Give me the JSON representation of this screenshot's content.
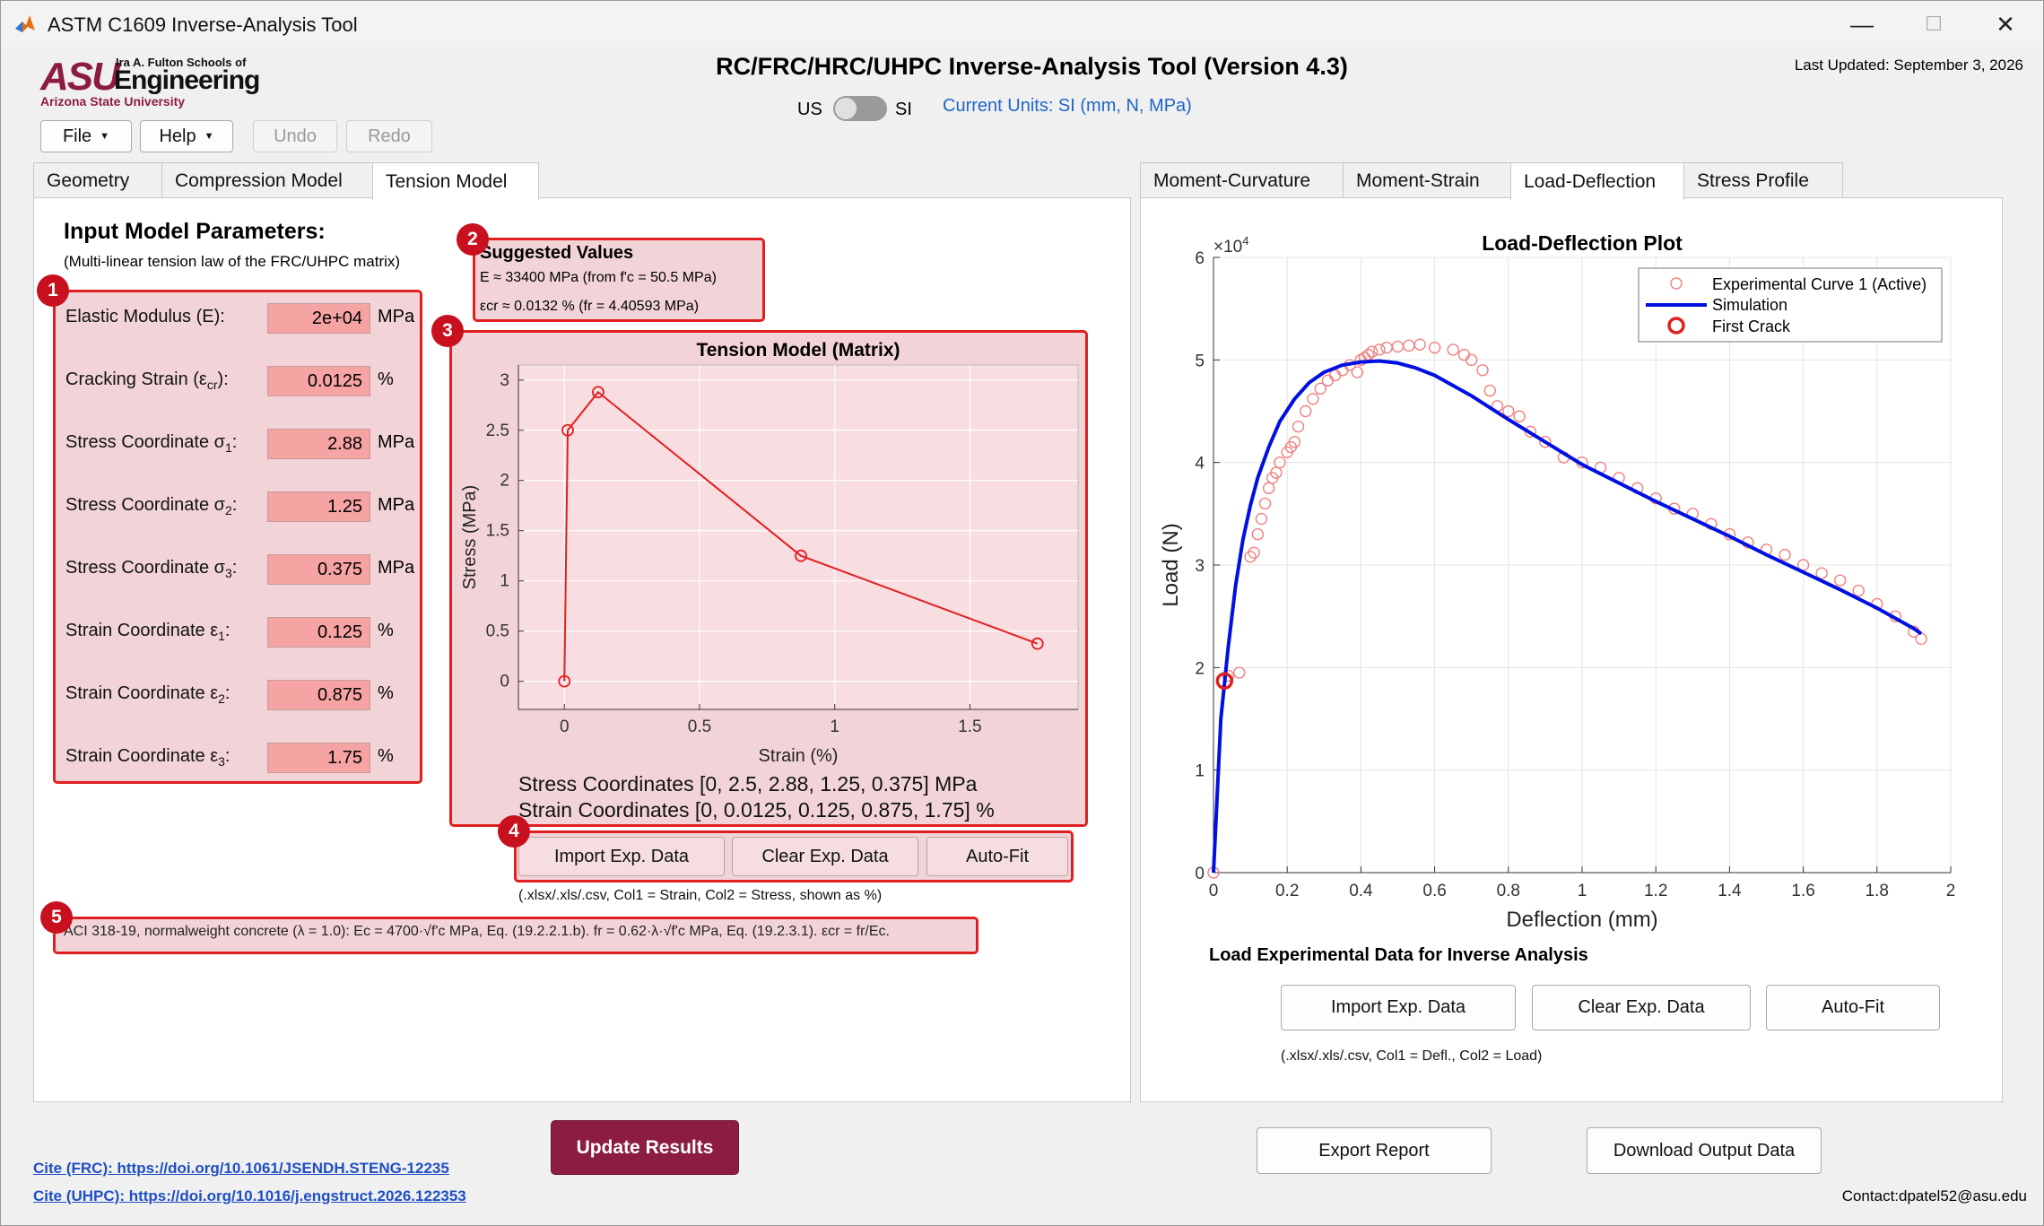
{
  "window": {
    "title": "ASTM C1609 Inverse-Analysis Tool",
    "minimize": "—",
    "maximize": "☐",
    "close": "✕"
  },
  "logo": {
    "asu": "ASU",
    "school": "Ira A. Fulton Schools of",
    "engineering": "Engineering",
    "university": "Arizona State University"
  },
  "menu": {
    "file": "File",
    "help": "Help",
    "undo": "Undo",
    "redo": "Redo"
  },
  "header": {
    "title": "RC/FRC/HRC/UHPC Inverse-Analysis Tool (Version 4.3)",
    "last_updated": "Last Updated: September 3, 2026",
    "unit_us": "US",
    "unit_si": "SI",
    "current_units": "Current Units: SI (mm, N, MPa)"
  },
  "left_tabs": [
    "Geometry",
    "Compression Model",
    "Tension Model"
  ],
  "right_tabs": [
    "Moment-Curvature",
    "Moment-Strain",
    "Load-Deflection",
    "Stress Profile"
  ],
  "input": {
    "heading": "Input Model Parameters:",
    "subheading": "(Multi-linear tension law of the FRC/UHPC matrix)",
    "params": [
      {
        "label": "Elastic Modulus (E):",
        "value": "2e+04",
        "unit": "MPa"
      },
      {
        "label": "Cracking Strain (ε",
        "sub": "cr",
        "tail": "):",
        "value": "0.0125",
        "unit": "%"
      },
      {
        "label": "Stress Coordinate σ",
        "sub": "1",
        "tail": ":",
        "value": "2.88",
        "unit": "MPa"
      },
      {
        "label": "Stress Coordinate σ",
        "sub": "2",
        "tail": ":",
        "value": "1.25",
        "unit": "MPa"
      },
      {
        "label": "Stress Coordinate σ",
        "sub": "3",
        "tail": ":",
        "value": "0.375",
        "unit": "MPa"
      },
      {
        "label": "Strain Coordinate ε",
        "sub": "1",
        "tail": ":",
        "value": "0.125",
        "unit": "%"
      },
      {
        "label": "Strain Coordinate ε",
        "sub": "2",
        "tail": ":",
        "value": "0.875",
        "unit": "%"
      },
      {
        "label": "Strain Coordinate ε",
        "sub": "3",
        "tail": ":",
        "value": "1.75",
        "unit": "%"
      }
    ]
  },
  "badges": [
    "1",
    "2",
    "3",
    "4",
    "5"
  ],
  "suggested": {
    "title": "Suggested Values",
    "line1": "E ≈ 33400 MPa  (from f'c = 50.5 MPa)",
    "line2": "εcr ≈ 0.0132 %  (fr = 4.40593 MPa)"
  },
  "tension_chart": {
    "stress_coords": "Stress Coordinates [0, 2.5, 2.88, 1.25, 0.375] MPa",
    "strain_coords": "Strain Coordinates [0, 0.0125, 0.125, 0.875, 1.75] %"
  },
  "left_buttons": {
    "import": "Import Exp. Data",
    "clear": "Clear Exp. Data",
    "autofit": "Auto-Fit",
    "note": "(.xlsx/.xls/.csv, Col1 = Strain, Col2 = Stress, shown as %)"
  },
  "aci_note": "ACI 318-19, normalweight concrete (λ = 1.0): Ec = 4700·√f'c MPa, Eq. (19.2.2.1.b). fr = 0.62·λ·√f'c MPa, Eq. (19.2.3.1). εcr = fr/Ec.",
  "right_panel": {
    "load_label": "Load Experimental Data for Inverse Analysis",
    "import": "Import Exp. Data",
    "clear": "Clear Exp. Data",
    "autofit": "Auto-Fit",
    "note": "(.xlsx/.xls/.csv, Col1 = Defl., Col2 = Load)"
  },
  "bottom": {
    "update": "Update Results",
    "export": "Export Report",
    "download": "Download Output Data",
    "cite_frc": "Cite (FRC): https://doi.org/10.1061/JSENDH.STENG-12235",
    "cite_uhpc": "Cite (UHPC): https://doi.org/10.1016/j.engstruct.2026.122353",
    "contact": "Contact:dpatel52@asu.edu"
  },
  "chart_data": [
    {
      "type": "line",
      "title": "Tension Model (Matrix)",
      "xlabel": "Strain (%)",
      "ylabel": "Stress (MPa)",
      "xlim": [
        -0.17,
        1.9
      ],
      "ylim": [
        -0.28,
        3.15
      ],
      "xticks": [
        0,
        0.5,
        1,
        1.5
      ],
      "yticks": [
        0,
        0.5,
        1,
        1.5,
        2,
        2.5,
        3
      ],
      "grid": true,
      "color": "#e02020",
      "x": [
        0,
        0.0125,
        0.125,
        0.875,
        1.75
      ],
      "y": [
        0,
        2.5,
        2.88,
        1.25,
        0.375
      ]
    },
    {
      "type": "line",
      "title": "Load-Deflection Plot",
      "xlabel": "Deflection (mm)",
      "ylabel": "Load (N)",
      "y_exponent": "×10",
      "y_exponent_power": "4",
      "xlim": [
        0,
        2
      ],
      "ylim": [
        0,
        6
      ],
      "xticks": [
        0,
        0.2,
        0.4,
        0.6,
        0.8,
        1,
        1.2,
        1.4,
        1.6,
        1.8,
        2
      ],
      "yticks": [
        0,
        1,
        2,
        3,
        4,
        5,
        6
      ],
      "grid": true,
      "legend_position": "top-right",
      "legend": [
        "Experimental Curve 1 (Active)",
        "Simulation",
        "First Crack"
      ],
      "series": [
        {
          "name": "Experimental Curve 1 (Active)",
          "color": "#f08080",
          "marker": "circle",
          "x": [
            0.0,
            0.04,
            0.07,
            0.1,
            0.11,
            0.12,
            0.13,
            0.14,
            0.15,
            0.16,
            0.17,
            0.18,
            0.2,
            0.21,
            0.22,
            0.23,
            0.25,
            0.27,
            0.29,
            0.31,
            0.33,
            0.35,
            0.37,
            0.39,
            0.4,
            0.41,
            0.42,
            0.43,
            0.45,
            0.47,
            0.5,
            0.53,
            0.56,
            0.6,
            0.65,
            0.68,
            0.7,
            0.73,
            0.75,
            0.77,
            0.8,
            0.83,
            0.86,
            0.9,
            0.95,
            1.0,
            1.05,
            1.1,
            1.15,
            1.2,
            1.25,
            1.3,
            1.35,
            1.4,
            1.45,
            1.5,
            1.55,
            1.6,
            1.65,
            1.7,
            1.75,
            1.8,
            1.85,
            1.9,
            1.92
          ],
          "y": [
            0.0,
            1.92,
            1.95,
            3.08,
            3.12,
            3.3,
            3.45,
            3.6,
            3.75,
            3.85,
            3.9,
            4.0,
            4.1,
            4.15,
            4.2,
            4.35,
            4.5,
            4.62,
            4.72,
            4.8,
            4.85,
            4.9,
            4.95,
            4.88,
            5.0,
            5.02,
            5.05,
            5.08,
            5.1,
            5.12,
            5.13,
            5.14,
            5.15,
            5.12,
            5.1,
            5.05,
            5.0,
            4.9,
            4.7,
            4.55,
            4.5,
            4.45,
            4.3,
            4.2,
            4.05,
            4.0,
            3.95,
            3.85,
            3.75,
            3.65,
            3.55,
            3.5,
            3.4,
            3.3,
            3.22,
            3.15,
            3.1,
            3.0,
            2.92,
            2.85,
            2.75,
            2.62,
            2.5,
            2.35,
            2.28
          ]
        },
        {
          "name": "Simulation",
          "color": "#0010e0",
          "marker": "none",
          "x": [
            0,
            0.02,
            0.04,
            0.06,
            0.08,
            0.1,
            0.12,
            0.15,
            0.18,
            0.22,
            0.26,
            0.3,
            0.35,
            0.4,
            0.45,
            0.5,
            0.55,
            0.6,
            0.7,
            0.8,
            0.9,
            1.0,
            1.1,
            1.2,
            1.3,
            1.4,
            1.5,
            1.6,
            1.7,
            1.8,
            1.9,
            1.92
          ],
          "y": [
            0,
            1.5,
            2.2,
            2.8,
            3.25,
            3.58,
            3.85,
            4.15,
            4.4,
            4.62,
            4.78,
            4.88,
            4.95,
            4.98,
            4.99,
            4.97,
            4.92,
            4.85,
            4.65,
            4.42,
            4.2,
            3.98,
            3.8,
            3.62,
            3.45,
            3.28,
            3.1,
            2.93,
            2.76,
            2.58,
            2.38,
            2.33
          ]
        },
        {
          "name": "First Crack",
          "color": "#e02020",
          "marker": "circle",
          "x": [
            0.03
          ],
          "y": [
            1.87
          ]
        }
      ]
    }
  ]
}
